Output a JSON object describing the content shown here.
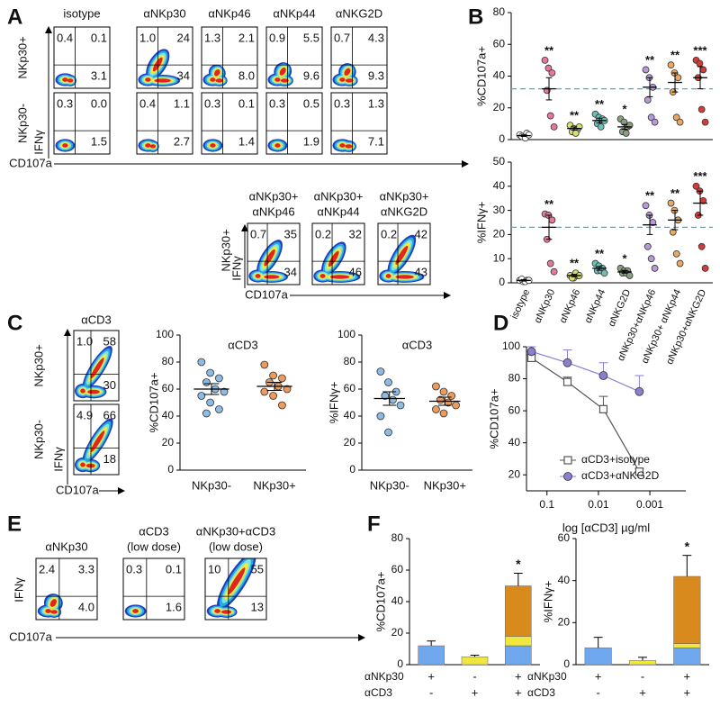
{
  "panel_labels": [
    "A",
    "B",
    "C",
    "D",
    "E",
    "F"
  ],
  "panel_a": {
    "columns": [
      "isotype",
      "αNKp30",
      "αNKp46",
      "αNKp44",
      "αNKG2D"
    ],
    "rows": [
      {
        "label": "NKp30+",
        "plots": [
          [
            "0.4",
            "0.1",
            "3.1"
          ],
          [
            "1.0",
            "24",
            "34"
          ],
          [
            "1.3",
            "2.1",
            "8.0"
          ],
          [
            "0.9",
            "5.5",
            "9.6"
          ],
          [
            "0.7",
            "4.3",
            "9.3"
          ]
        ]
      },
      {
        "label": "NKp30-",
        "plots": [
          [
            "0.3",
            "0.0",
            "1.5"
          ],
          [
            "0.4",
            "1.1",
            "2.7"
          ],
          [
            "0.3",
            "0.1",
            "1.4"
          ],
          [
            "0.3",
            "0.5",
            "1.9"
          ],
          [
            "0.3",
            "1.3",
            "7.1"
          ]
        ]
      }
    ],
    "y_axis": "IFNγ",
    "x_axis": "CD107a",
    "combo": {
      "columns": [
        [
          "αNKp30+",
          "αNKp46"
        ],
        [
          "αNKp30+",
          "αNKp44"
        ],
        [
          "αNKp30+",
          "αNKG2D"
        ]
      ],
      "row_label": "NKp30+",
      "plots": [
        [
          "0.7",
          "35",
          "34"
        ],
        [
          "0.2",
          "32",
          "46"
        ],
        [
          "0.2",
          "42",
          "43"
        ]
      ],
      "y_axis": "IFNγ",
      "x_axis": "CD107a"
    }
  },
  "panel_c_flow": {
    "title": "αCD3",
    "rows": [
      {
        "label": "NKp30+",
        "plot": [
          "1.0",
          "58",
          "30"
        ]
      },
      {
        "label": "NKp30-",
        "plot": [
          "4.9",
          "66",
          "18"
        ]
      }
    ],
    "y_axis": "IFNγ",
    "x_axis": "CD107a"
  },
  "panel_e_flow": {
    "columns": [
      [
        "αNKp30"
      ],
      [
        "αCD3",
        "(low dose)"
      ],
      [
        "αNKp30+αCD3",
        "(low dose)"
      ]
    ],
    "plots": [
      [
        "2.4",
        "3.3",
        "4.0"
      ],
      [
        "0.3",
        "0.1",
        "1.6"
      ],
      [
        "10",
        "55",
        "13"
      ]
    ],
    "y_axis": "IFNγ",
    "x_axis": "CD107a"
  },
  "chart_data": [
    {
      "type": "dot",
      "ylabel": "%CD107a+",
      "ylim": [
        0,
        80
      ],
      "yticks": [
        0,
        20,
        40,
        60,
        80
      ],
      "reference": 32,
      "colors": [
        "#ffffff",
        "#e8789a",
        "#d8e070",
        "#6cc0b8",
        "#8aa080",
        "#b89ad8",
        "#eaa860",
        "#d83a3a"
      ],
      "points": [
        [
          3,
          2,
          4,
          2,
          1,
          3
        ],
        [
          50,
          45,
          42,
          31,
          15,
          8
        ],
        [
          9,
          7,
          6,
          5,
          4,
          8
        ],
        [
          16,
          14,
          13,
          10,
          8,
          12
        ],
        [
          13,
          11,
          8,
          5,
          4,
          9
        ],
        [
          44,
          39,
          33,
          25,
          14,
          11
        ],
        [
          47,
          42,
          39,
          30,
          14,
          11
        ],
        [
          50,
          48,
          44,
          39,
          19,
          11
        ]
      ],
      "means": [
        2.5,
        32,
        7,
        12,
        8,
        33,
        36,
        39
      ],
      "errors": [
        0.5,
        7,
        1,
        1.5,
        1.5,
        6,
        6,
        7
      ],
      "stars": [
        null,
        "**",
        "**",
        "**",
        "*",
        "**",
        "**",
        "***"
      ]
    },
    {
      "type": "dot",
      "ylabel": "%IFNγ+",
      "ylim": [
        0,
        50
      ],
      "yticks": [
        0,
        10,
        20,
        30,
        40,
        50
      ],
      "reference": 23,
      "categories": [
        "isotype",
        "αNKp30",
        "αNKp46",
        "αNKp44",
        "αNKG2D",
        "αNKp30+αNKp46",
        "αNKp30+ αNKp44",
        "αNKp30+αNKG2D"
      ],
      "colors": [
        "#ffffff",
        "#e8789a",
        "#d8e070",
        "#6cc0b8",
        "#8aa080",
        "#b89ad8",
        "#eaa860",
        "#d83a3a"
      ],
      "points": [
        [
          1,
          0.5,
          1,
          1.5,
          0.5,
          1
        ],
        [
          28.5,
          28,
          26,
          18,
          8,
          4.6
        ],
        [
          3,
          2,
          3,
          2,
          4,
          3
        ],
        [
          8,
          7,
          6,
          5,
          5,
          4
        ],
        [
          6,
          5,
          5,
          4,
          4,
          3
        ],
        [
          32,
          28,
          25,
          15,
          10,
          6
        ],
        [
          33,
          30,
          26,
          21,
          12,
          8
        ],
        [
          40,
          38,
          34,
          28,
          15,
          6
        ]
      ],
      "means": [
        1,
        23,
        3,
        6,
        4.5,
        24,
        26,
        33
      ],
      "errors": [
        0.3,
        5,
        0.5,
        0.8,
        0.5,
        4,
        4,
        5
      ],
      "stars": [
        null,
        "**",
        "**",
        "**",
        "*",
        "**",
        "**",
        "***"
      ]
    },
    {
      "type": "dot",
      "title": "αCD3",
      "ylabel": "%CD107a+",
      "categories": [
        "NKp30-",
        "NKp30+"
      ],
      "colors": [
        "#8dbbe3",
        "#ec9a5e"
      ],
      "ylim": [
        0,
        100
      ],
      "yticks": [
        0,
        20,
        40,
        60,
        80,
        100
      ],
      "points": [
        [
          80,
          72,
          68,
          65,
          60,
          58,
          55,
          50,
          45,
          42
        ],
        [
          78,
          70,
          68,
          65,
          62,
          60,
          58,
          55,
          48
        ]
      ],
      "means": [
        60,
        62
      ],
      "errors": [
        4,
        3
      ]
    },
    {
      "type": "dot",
      "title": "αCD3",
      "ylabel": "%IFNγ+",
      "categories": [
        "NKp30-",
        "NKp30+"
      ],
      "colors": [
        "#8dbbe3",
        "#ec9a5e"
      ],
      "ylim": [
        0,
        100
      ],
      "yticks": [
        0,
        20,
        40,
        60,
        80,
        100
      ],
      "points": [
        [
          73,
          65,
          58,
          55,
          52,
          48,
          40,
          28
        ],
        [
          62,
          58,
          55,
          52,
          50,
          48,
          45,
          42
        ]
      ],
      "means": [
        53,
        51
      ],
      "errors": [
        5,
        3
      ]
    },
    {
      "type": "line",
      "ylabel": "%CD107a+",
      "xlabel": "log [αCD3] µg/ml",
      "xscale": "log",
      "xlim": [
        0.25,
        0.0002
      ],
      "xticks": [
        0.1,
        0.01,
        0.001
      ],
      "ylim": [
        10,
        100
      ],
      "yticks": [
        20,
        40,
        60,
        80,
        100
      ],
      "x": [
        0.2,
        0.04,
        0.008,
        0.0016
      ],
      "legend": "lower right",
      "series": [
        {
          "name": "αCD3+isotype",
          "color": "#555555",
          "marker": "square",
          "values": [
            93,
            78,
            61,
            22
          ],
          "errors": [
            2,
            3,
            8,
            2
          ]
        },
        {
          "name": "αCD3+αNKG2D",
          "color": "#8a7fd0",
          "marker": "circle",
          "values": [
            97,
            90,
            82,
            72
          ],
          "errors": [
            3,
            8,
            8,
            10
          ]
        }
      ]
    },
    {
      "type": "bar",
      "ylabel": "%CD107a+",
      "ylim": [
        0,
        80
      ],
      "yticks": [
        0,
        20,
        40,
        60,
        80
      ],
      "series": [
        {
          "color": "#6fa8ee",
          "values": [
            12,
            0,
            12
          ]
        },
        {
          "color": "#f0e640",
          "values": [
            0,
            5,
            6
          ]
        },
        {
          "color": "#d88a1c",
          "values": [
            0,
            0,
            32
          ]
        }
      ],
      "errors": [
        3,
        1,
        8
      ],
      "stars": [
        null,
        null,
        "*"
      ],
      "conditions": [
        {
          "name": "αNKp30",
          "signs": [
            "+",
            "-",
            "+"
          ]
        },
        {
          "name": "αCD3",
          "signs": [
            "-",
            "+",
            "+"
          ]
        }
      ]
    },
    {
      "type": "bar",
      "ylabel": "%IFNγ+",
      "ylim": [
        0,
        60
      ],
      "yticks": [
        0,
        20,
        40,
        60
      ],
      "series": [
        {
          "color": "#6fa8ee",
          "values": [
            8,
            0,
            8
          ]
        },
        {
          "color": "#f0e640",
          "values": [
            0,
            2,
            2
          ]
        },
        {
          "color": "#d88a1c",
          "values": [
            0,
            0,
            32
          ]
        }
      ],
      "errors": [
        5,
        1.5,
        10
      ],
      "stars": [
        null,
        null,
        "*"
      ],
      "conditions": [
        {
          "name": "αNKp30",
          "signs": [
            "+",
            "-",
            "+"
          ]
        },
        {
          "name": "αCD3",
          "signs": [
            "-",
            "+",
            "+"
          ]
        }
      ]
    }
  ]
}
